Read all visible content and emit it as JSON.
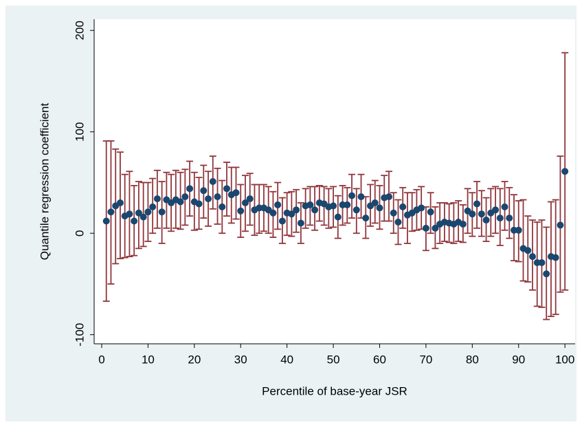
{
  "chart_data": {
    "type": "scatter",
    "xlabel": "Percentile of base-year JSR",
    "ylabel": "Quantile regression coefficient",
    "x": [
      1,
      2,
      3,
      4,
      5,
      6,
      7,
      8,
      9,
      10,
      11,
      12,
      13,
      14,
      15,
      16,
      17,
      18,
      19,
      20,
      21,
      22,
      23,
      24,
      25,
      26,
      27,
      28,
      29,
      30,
      31,
      32,
      33,
      34,
      35,
      36,
      37,
      38,
      39,
      40,
      41,
      42,
      43,
      44,
      45,
      46,
      47,
      48,
      49,
      50,
      51,
      52,
      53,
      54,
      55,
      56,
      57,
      58,
      59,
      60,
      61,
      62,
      63,
      64,
      65,
      66,
      67,
      68,
      69,
      70,
      71,
      72,
      73,
      74,
      75,
      76,
      77,
      78,
      79,
      80,
      81,
      82,
      83,
      84,
      85,
      86,
      87,
      88,
      89,
      90,
      91,
      92,
      93,
      94,
      95,
      96,
      97,
      98,
      99,
      100
    ],
    "values": [
      12,
      21,
      27,
      30,
      17,
      19,
      12,
      20,
      16,
      21,
      26,
      34,
      21,
      33,
      30,
      33,
      31,
      36,
      44,
      31,
      29,
      42,
      34,
      51,
      36,
      26,
      44,
      38,
      40,
      22,
      30,
      34,
      23,
      25,
      25,
      23,
      20,
      28,
      12,
      20,
      19,
      23,
      10,
      27,
      28,
      23,
      30,
      29,
      26,
      27,
      16,
      28,
      28,
      37,
      23,
      36,
      15,
      27,
      30,
      25,
      35,
      36,
      20,
      11,
      26,
      18,
      20,
      23,
      25,
      5,
      21,
      5,
      9,
      11,
      10,
      9,
      11,
      9,
      22,
      19,
      29,
      19,
      13,
      20,
      23,
      15,
      26,
      15,
      3,
      3,
      -15,
      -17,
      -23,
      -29,
      -29,
      -40,
      -23,
      -24,
      8,
      61
    ],
    "lower": [
      -67,
      -50,
      -30,
      -25,
      -24,
      -23,
      -22,
      -15,
      -13,
      -8,
      0,
      5,
      -10,
      5,
      2,
      5,
      4,
      8,
      17,
      3,
      4,
      15,
      7,
      24,
      9,
      0,
      17,
      10,
      14,
      -4,
      2,
      8,
      -2,
      0,
      2,
      0,
      -4,
      4,
      -10,
      -2,
      -3,
      1,
      -10,
      5,
      8,
      3,
      12,
      8,
      5,
      6,
      -5,
      8,
      10,
      15,
      0,
      15,
      -5,
      7,
      10,
      4,
      12,
      12,
      0,
      -11,
      5,
      -10,
      2,
      3,
      4,
      -17,
      0,
      -15,
      -10,
      -8,
      -9,
      -10,
      -8,
      -9,
      0,
      -3,
      5,
      -3,
      -8,
      -3,
      0,
      -12,
      3,
      -5,
      -27,
      -28,
      -47,
      -48,
      -56,
      -72,
      -73,
      -85,
      -82,
      -80,
      -58,
      -56
    ],
    "upper": [
      91,
      91,
      83,
      80,
      58,
      61,
      47,
      51,
      50,
      50,
      54,
      62,
      51,
      60,
      58,
      62,
      60,
      63,
      71,
      60,
      55,
      67,
      61,
      76,
      64,
      52,
      70,
      65,
      65,
      48,
      57,
      59,
      48,
      48,
      48,
      46,
      41,
      50,
      35,
      40,
      41,
      43,
      30,
      44,
      46,
      46,
      47,
      46,
      44,
      46,
      37,
      47,
      45,
      58,
      44,
      58,
      36,
      48,
      52,
      47,
      57,
      61,
      40,
      33,
      45,
      40,
      40,
      43,
      46,
      26,
      40,
      26,
      30,
      30,
      29,
      30,
      32,
      28,
      44,
      40,
      51,
      42,
      35,
      44,
      46,
      44,
      51,
      45,
      38,
      32,
      33,
      17,
      13,
      11,
      13,
      6,
      31,
      33,
      76,
      178
    ],
    "xlim": [
      -1.63,
      102.2
    ],
    "ylim": [
      -109,
      211
    ],
    "xticks": [
      0,
      10,
      20,
      30,
      40,
      50,
      60,
      70,
      80,
      90,
      100
    ],
    "yticks": [
      -100,
      0,
      100,
      200
    ],
    "marker_color": "#1a476f",
    "errorbar_color": "#90353b"
  }
}
